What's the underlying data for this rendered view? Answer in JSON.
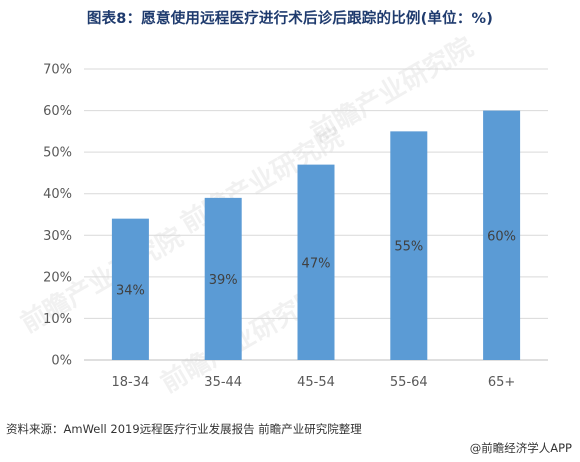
{
  "title": "图表8：愿意使用远程医疗进行术后诊后跟踪的比例(单位：%)",
  "source": "资料来源：AmWell 2019远程医疗行业发展报告 前瞻产业研究院整理",
  "credit": "@前瞻经济学人APP",
  "watermark": "前瞻产业研究院",
  "colors": {
    "bar": "#5b9bd5",
    "grid": "#d9d9d9",
    "axis": "#bfbfbf"
  },
  "chart_data": {
    "type": "bar",
    "categories": [
      "18-34",
      "35-44",
      "45-54",
      "55-64",
      "65+"
    ],
    "values": [
      34,
      39,
      47,
      55,
      60
    ],
    "data_labels": [
      "34%",
      "39%",
      "47%",
      "55%",
      "60%"
    ],
    "y_ticks": [
      "0%",
      "10%",
      "20%",
      "30%",
      "40%",
      "50%",
      "60%",
      "70%"
    ],
    "ylim": [
      0,
      70
    ],
    "grid": true,
    "legend": "none"
  }
}
